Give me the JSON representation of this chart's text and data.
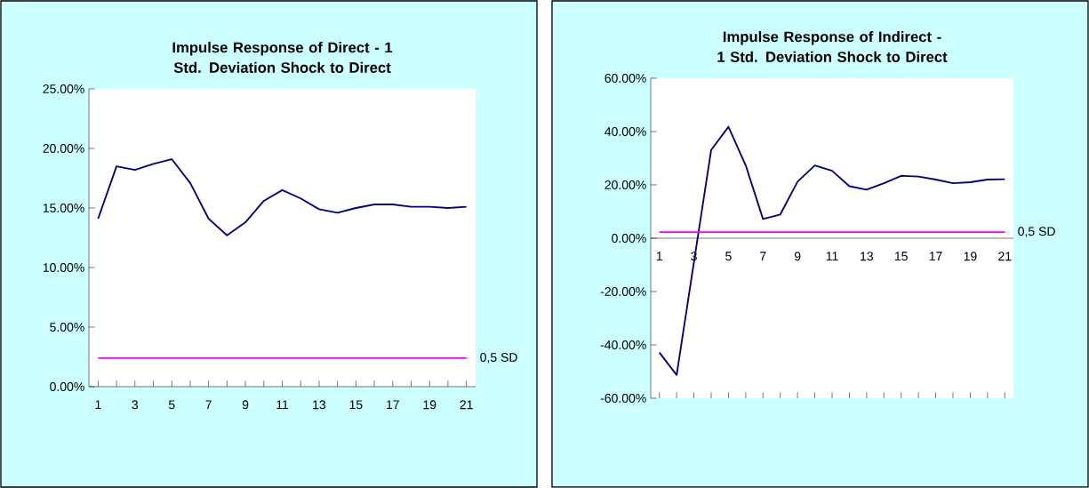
{
  "chart_data": [
    {
      "type": "line",
      "title": "Impulse Response of Direct - 1 Std. Deviation Shock to Direct",
      "categories": [
        "1",
        null,
        "3",
        null,
        "5",
        null,
        "7",
        null,
        "9",
        null,
        "11",
        null,
        "13",
        null,
        "15",
        null,
        "17",
        null,
        "19",
        null,
        "21"
      ],
      "series": [
        {
          "color": "#000080",
          "values": [
            14.1,
            18.5,
            18.2,
            18.7,
            19.1,
            17.1,
            14.1,
            12.7,
            13.8,
            15.6,
            16.5,
            15.8,
            14.9,
            14.6,
            15.0,
            15.3,
            15.3,
            15.1,
            15.1,
            15.0,
            15.1
          ]
        }
      ],
      "ylim": [
        0,
        25
      ],
      "yticks": [
        {
          "value": 0,
          "label": "0.00%"
        },
        {
          "value": 5,
          "label": "5.00%"
        },
        {
          "value": 10,
          "label": "10.00%"
        },
        {
          "value": 15,
          "label": "15.00%"
        },
        {
          "value": 20,
          "label": "20.00%"
        },
        {
          "value": 25,
          "label": "25.00%"
        }
      ],
      "ref_lines": [
        {
          "axis": "y",
          "value": 2.4,
          "label": "0,5 SD",
          "color": "#ff00ff"
        }
      ]
    },
    {
      "type": "line",
      "title": "Impulse Response of Indirect - 1 Std. Deviation Shock to Direct",
      "categories": [
        "1",
        null,
        "3",
        null,
        "5",
        null,
        "7",
        null,
        "9",
        null,
        "11",
        null,
        "13",
        null,
        "15",
        null,
        "17",
        null,
        "19",
        null,
        "21"
      ],
      "series": [
        {
          "color": "#000080",
          "values": [
            -42.9,
            -51.3,
            -9,
            33.1,
            41.8,
            27.3,
            7.2,
            8.9,
            21.2,
            27.3,
            25.3,
            19.5,
            18.2,
            20.6,
            23.4,
            23.1,
            22.0,
            20.6,
            21.0,
            22.0,
            22.1
          ]
        }
      ],
      "ylim": [
        -60,
        60
      ],
      "yticks": [
        {
          "value": -60,
          "label": "-60.00%"
        },
        {
          "value": -40,
          "label": "-40.00%"
        },
        {
          "value": -20,
          "label": "-20.00%"
        },
        {
          "value": 0,
          "label": "0.00%"
        },
        {
          "value": 20,
          "label": "20.00%"
        },
        {
          "value": 40,
          "label": "40.00%"
        },
        {
          "value": 60,
          "label": "60.00%"
        }
      ],
      "ref_lines": [
        {
          "axis": "y",
          "value": 2.3,
          "label": "0,5 SD",
          "color": "#ff00ff"
        }
      ]
    }
  ]
}
